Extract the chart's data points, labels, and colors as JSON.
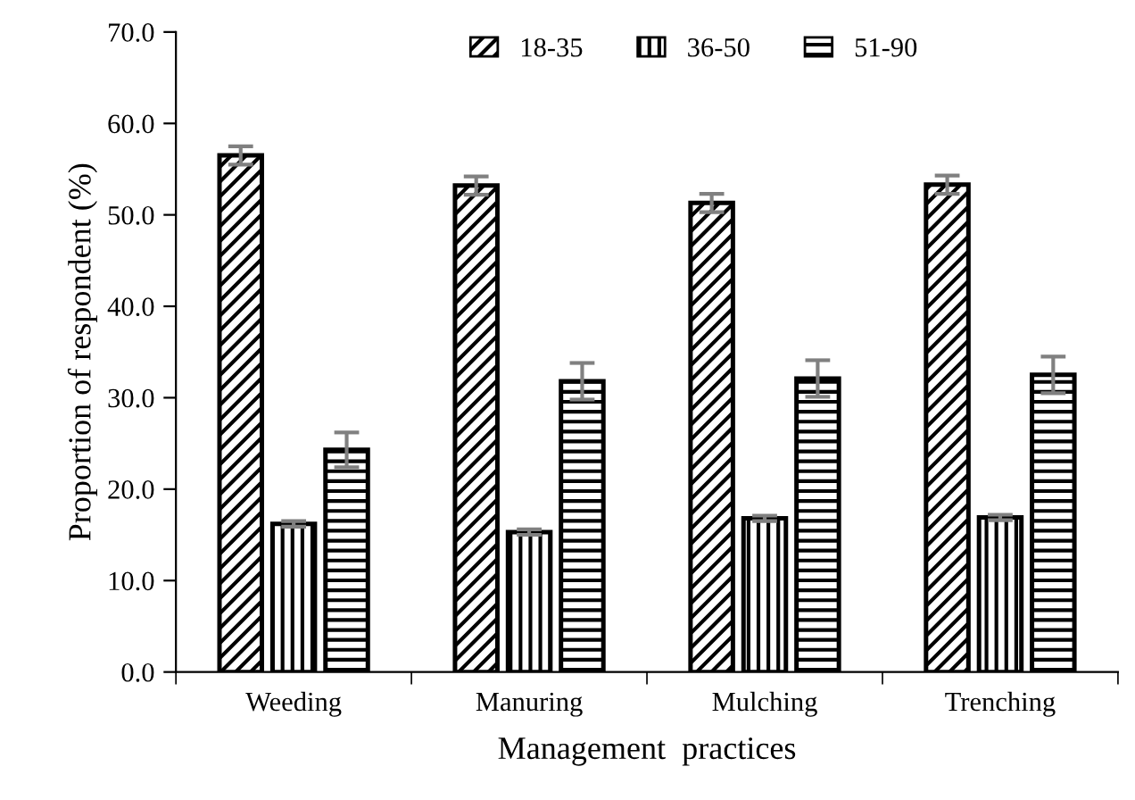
{
  "chart_data": {
    "type": "bar",
    "xlabel": "Management  practices",
    "ylabel": "Proportion of respondent (%)",
    "categories": [
      "Weeding",
      "Manuring",
      "Mulching",
      "Trenching"
    ],
    "series": [
      {
        "name": "18-35",
        "color": "#000000",
        "values": [
          56.5,
          53.2,
          51.3,
          53.3
        ],
        "errors": [
          1.0,
          1.0,
          1.0,
          1.0
        ]
      },
      {
        "name": "36-50",
        "color": "#000000",
        "values": [
          16.2,
          15.3,
          16.8,
          16.9
        ],
        "errors": [
          0.3,
          0.3,
          0.3,
          0.3
        ]
      },
      {
        "name": "51-90",
        "color": "#000000",
        "values": [
          24.3,
          31.8,
          32.1,
          32.5
        ],
        "errors": [
          1.9,
          2.0,
          2.0,
          2.0
        ]
      }
    ],
    "ylim": [
      0,
      70
    ],
    "yticks": [
      {
        "value": 0,
        "label": "0.0"
      },
      {
        "value": 10,
        "label": "10.0"
      },
      {
        "value": 20,
        "label": "20.0"
      },
      {
        "value": 30,
        "label": "30.0"
      },
      {
        "value": 40,
        "label": "40.0"
      },
      {
        "value": 50,
        "label": "50.0"
      },
      {
        "value": 60,
        "label": "60.0"
      },
      {
        "value": 70,
        "label": "70.0"
      }
    ],
    "legend": "top",
    "grid": false
  }
}
